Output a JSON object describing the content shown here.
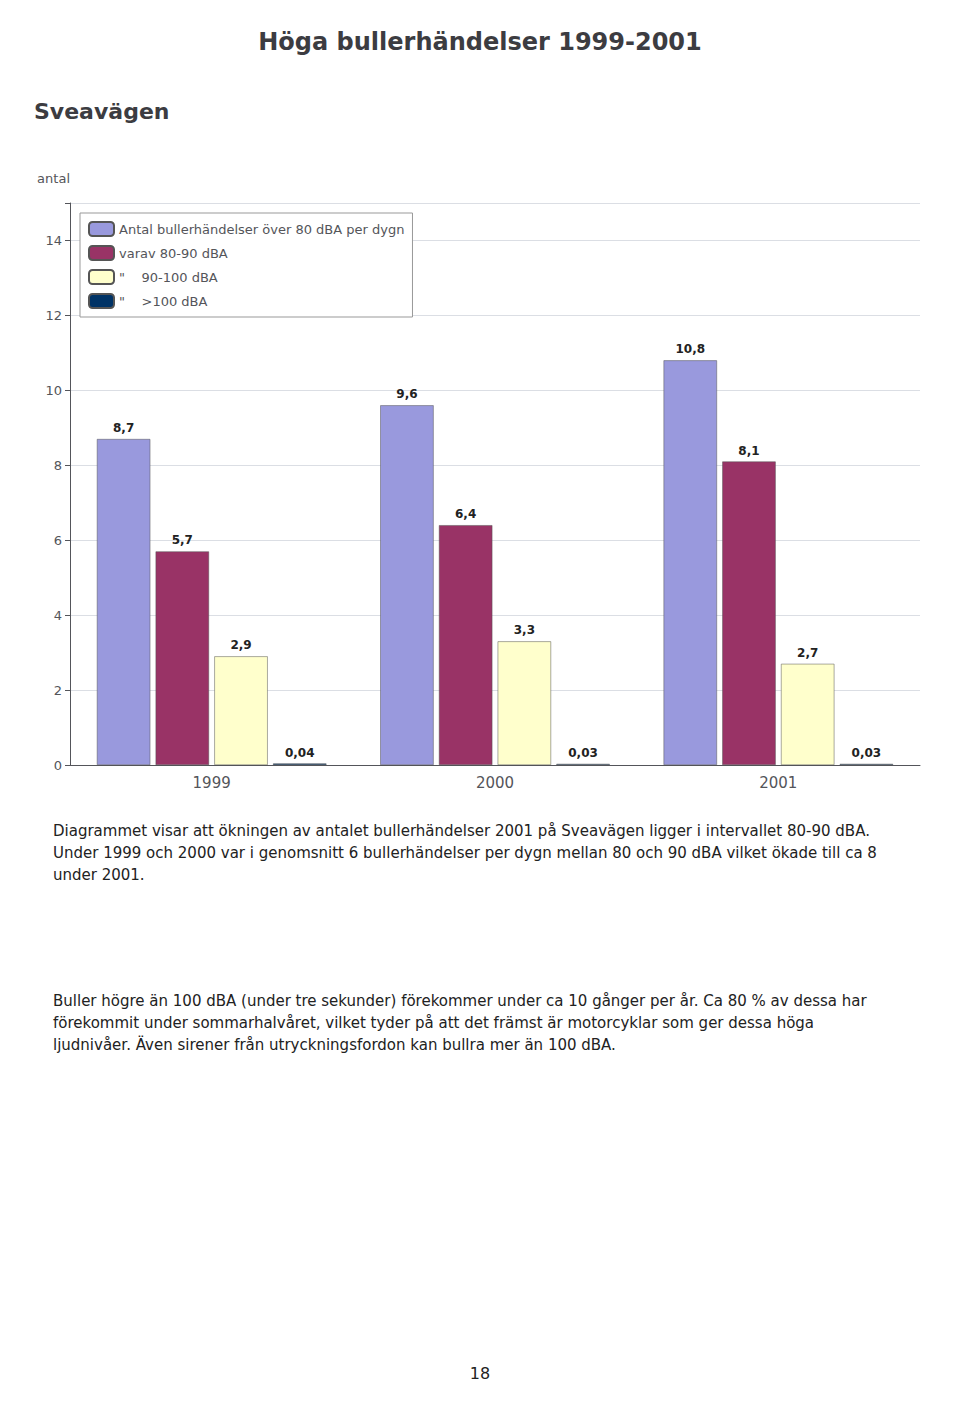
{
  "chart_data": {
    "type": "bar",
    "title": "Höga bullerhändelser 1999-2001",
    "subtitle": "Sveavägen",
    "ylabel": "antal",
    "categories": [
      "1999",
      "2000",
      "2001"
    ],
    "series": [
      {
        "name": "Antal bullerhändelser över 80 dBA per dygn",
        "color": "#9999DD",
        "values": [
          8.7,
          9.6,
          10.8
        ],
        "value_labels": [
          "8,7",
          "9,6",
          "10,8"
        ]
      },
      {
        "name": "varav 80-90 dBA",
        "color": "#993366",
        "values": [
          5.7,
          6.4,
          8.1
        ],
        "value_labels": [
          "5,7",
          "6,4",
          "8,1"
        ]
      },
      {
        "name": "\"    90-100 dBA",
        "color": "#FFFFCC",
        "values": [
          2.9,
          3.3,
          2.7
        ],
        "value_labels": [
          "2,9",
          "3,3",
          "2,7"
        ]
      },
      {
        "name": "\"    >100 dBA",
        "color": "#003366",
        "values": [
          0.04,
          0.03,
          0.03
        ],
        "value_labels": [
          "0,04",
          "0,03",
          "0,03"
        ]
      }
    ],
    "ylim": [
      0,
      15
    ],
    "yticks": [
      0,
      2,
      4,
      6,
      8,
      10,
      12,
      14
    ],
    "grid": true,
    "legend": "upper left",
    "data_labels": true,
    "annotations": [
      "Diagrammet visar att ökningen av antalet bullerhändelser 2001 på Sveavägen ligger i intervallet 80-90 dBA. Under 1999 och 2000 var i genomsnitt 6 bullerhändelser per dygn mellan 80 och 90 dBA vilket ökade till ca 8 under 2001.",
      "Buller högre än 100 dBA (under tre sekunder) förekommer under ca 10 gånger per år. Ca 80 % av dessa har förekommit under sommarhalvåret, vilket tyder på att det främst är motorcyklar som ger dessa höga ljudnivåer. Även sirener från utryckningsfordon kan bullra mer än 100 dBA.",
      "18"
    ]
  }
}
